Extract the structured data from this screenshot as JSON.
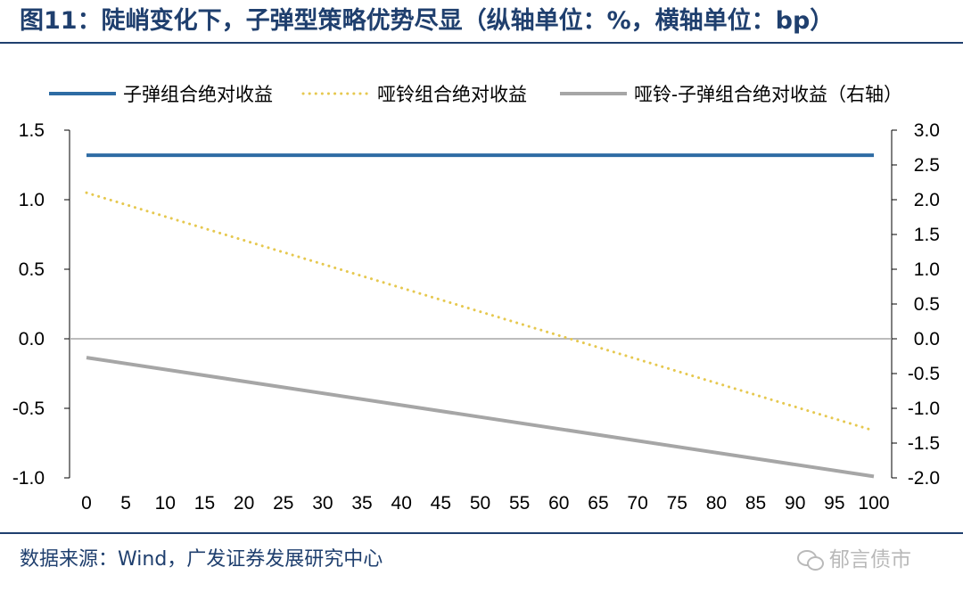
{
  "figure": {
    "title": "图11：陡峭变化下，子弹型策略优势尽显（纵轴单位：%，横轴单位：bp）",
    "source": "数据来源：Wind，广发证券发展研究中心",
    "watermark": "郁言债市",
    "watermark_icon": "wechat-icon"
  },
  "colors": {
    "title": "#1f3f6e",
    "bullet_series": "#2e6ca4",
    "barbell_series": "#e6c84f",
    "diff_series": "#a6a6a6",
    "zero_line": "#a6a6a6"
  },
  "chart_data": {
    "type": "line",
    "x": [
      0,
      100
    ],
    "xticks": [
      "0",
      "5",
      "10",
      "15",
      "20",
      "25",
      "30",
      "35",
      "40",
      "45",
      "50",
      "55",
      "60",
      "65",
      "70",
      "75",
      "80",
      "85",
      "90",
      "95",
      "100"
    ],
    "left_axis": {
      "ylim": [
        -1.0,
        1.5
      ],
      "ticks": [
        "1.5",
        "1.0",
        "0.5",
        "0.0",
        "-0.5",
        "-1.0"
      ],
      "tick_values": [
        1.5,
        1.0,
        0.5,
        0.0,
        -0.5,
        -1.0
      ]
    },
    "right_axis": {
      "ylim": [
        -2.0,
        3.0
      ],
      "ticks": [
        "3.0",
        "2.5",
        "2.0",
        "1.5",
        "1.0",
        "0.5",
        "0.0",
        "-0.5",
        "-1.0",
        "-1.5",
        "-2.0"
      ],
      "tick_values": [
        3.0,
        2.5,
        2.0,
        1.5,
        1.0,
        0.5,
        0.0,
        -0.5,
        -1.0,
        -1.5,
        -2.0
      ]
    },
    "series": [
      {
        "name": "子弹组合绝对收益",
        "axis": "left",
        "style": "solid",
        "x": [
          0,
          100
        ],
        "values": [
          1.32,
          1.32
        ]
      },
      {
        "name": "哑铃组合绝对收益",
        "axis": "left",
        "style": "dotted",
        "x": [
          0,
          100
        ],
        "values": [
          1.05,
          -0.66
        ]
      },
      {
        "name": "哑铃-子弹组合绝对收益（右轴）",
        "axis": "right",
        "style": "solid",
        "x": [
          0,
          100
        ],
        "values": [
          -0.27,
          -1.98
        ]
      }
    ],
    "grid": false,
    "legend_position": "top"
  }
}
